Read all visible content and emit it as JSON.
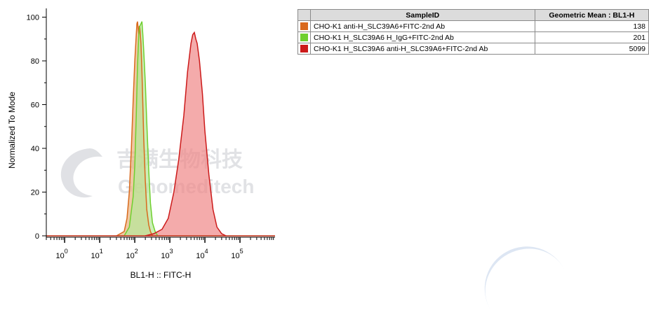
{
  "chart_data": {
    "type": "area",
    "xlabel": "BL1-H :: FITC-H",
    "ylabel": "Normalized To Mode",
    "x_scale": "log",
    "xlim": [
      0.3,
      1000000
    ],
    "ylim": [
      0,
      104
    ],
    "y_ticks": [
      "0",
      "20",
      "40",
      "60",
      "80",
      "100"
    ],
    "x_ticks": [
      {
        "base": "10",
        "exp": "0"
      },
      {
        "base": "10",
        "exp": "1"
      },
      {
        "base": "10",
        "exp": "2"
      },
      {
        "base": "10",
        "exp": "3"
      },
      {
        "base": "10",
        "exp": "4"
      },
      {
        "base": "10",
        "exp": "5"
      }
    ],
    "series": [
      {
        "name": "CHO-K1 anti-H_SLC39A6+FITC-2nd Ab",
        "color": "#d96a1e",
        "fill": "#e8b07c",
        "x": [
          30,
          50,
          60,
          70,
          80,
          90,
          100,
          110,
          115,
          120,
          125,
          130,
          135,
          140,
          150,
          160,
          170,
          180,
          200,
          220,
          250,
          280,
          320
        ],
        "y": [
          0,
          2,
          8,
          20,
          40,
          62,
          80,
          92,
          97,
          98,
          95,
          92,
          96,
          95,
          88,
          75,
          60,
          45,
          25,
          12,
          5,
          2,
          0
        ]
      },
      {
        "name": "CHO-K1 H_SLC39A6 H_IgG+FITC-2nd Ab",
        "color": "#6fcf2f",
        "fill": "#b7e89a",
        "x": [
          50,
          70,
          90,
          100,
          110,
          120,
          130,
          140,
          150,
          160,
          170,
          180,
          200,
          220,
          250,
          280,
          320,
          380,
          450
        ],
        "y": [
          0,
          4,
          18,
          32,
          55,
          78,
          92,
          96,
          97,
          98,
          92,
          85,
          70,
          52,
          30,
          15,
          6,
          2,
          0
        ]
      },
      {
        "name": "CHO-K1 H_SLC39A6 anti-H_SLC39A6+FITC-2nd Ab",
        "color": "#cc1a1a",
        "fill": "#f08888",
        "x": [
          200,
          350,
          600,
          900,
          1300,
          1800,
          2500,
          3200,
          4000,
          4500,
          5000,
          5500,
          6000,
          7000,
          8500,
          10000,
          13000,
          17000,
          22000,
          30000,
          40000
        ],
        "y": [
          0,
          1,
          3,
          8,
          20,
          35,
          55,
          75,
          88,
          92,
          93,
          90,
          88,
          80,
          65,
          48,
          28,
          12,
          4,
          1,
          0
        ]
      }
    ]
  },
  "table": {
    "headers": [
      "SampleID",
      "Geometric Mean : BL1-H"
    ],
    "rows": [
      {
        "color": "#d96a1e",
        "sample": "CHO-K1 anti-H_SLC39A6+FITC-2nd Ab",
        "gm": "138"
      },
      {
        "color": "#6fcf2f",
        "sample": "CHO-K1 H_SLC39A6 H_IgG+FITC-2nd Ab",
        "gm": "201"
      },
      {
        "color": "#cc1a1a",
        "sample": "CHO-K1 H_SLC39A6 anti-H_SLC39A6+FITC-2nd Ab",
        "gm": "5099"
      }
    ]
  },
  "watermark": {
    "cn": "吉满生物科技",
    "en": "Genomeditech",
    "color": "#c9ccd1"
  }
}
